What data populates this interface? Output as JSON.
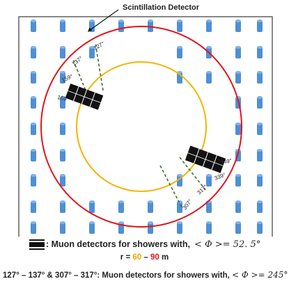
{
  "callout_label": "Scintillation Detector",
  "angle_labels": {
    "a127": "127°",
    "a137": "137°",
    "a159": "159°",
    "a169": "169°",
    "a307": "307°",
    "a317": "317°",
    "a339": "339°",
    "a349": "349°"
  },
  "colors": {
    "detector": "#4f8fd6",
    "inner_circle": "#f5b400",
    "outer_circle": "#e0141b",
    "dashed_lines": "#4a6b2a",
    "muon_detector": "#111111",
    "frame": "#555555"
  },
  "legend": {
    "muon_text": ": Muon detectors for showers with,",
    "muon_phi": "< Φ >= 52. 5°",
    "radius_prefix": "r = ",
    "radius_inner": "60",
    "radius_dash": " – ",
    "radius_outer": "90",
    "radius_unit": " m",
    "ranges_text": "127° – 137° & 307° – 317°: Muon detectors for showers with,",
    "ranges_phi": "< Φ >= 245°"
  }
}
